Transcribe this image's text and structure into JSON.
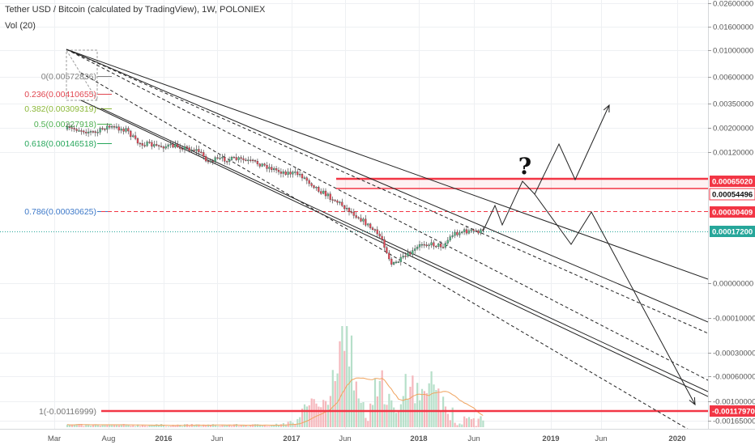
{
  "header": {
    "title": "Tether USD / Bitcoin (calculated by TradingView), 1W, POLONIEX",
    "indicator": "Vol (20)"
  },
  "colors": {
    "background": "#ffffff",
    "grid": "#eef0f3",
    "candle_up": "#53b987",
    "candle_down": "#eb4d5c",
    "volume_up": "#b6dfc9",
    "volume_down": "#f5b7bc",
    "volume_ma": "#f0a35e",
    "trendline": "#222222",
    "level_red": "#f23645",
    "current_price": "#26a69a",
    "fib_0": "#808080",
    "fib_0236": "#e0454f",
    "fib_0382": "#8cb839",
    "fib_05": "#4caf50",
    "fib_0618": "#26a65b",
    "fib_0786": "#3c78c8",
    "fib_1": "#757575"
  },
  "price_axis": {
    "ticks": [
      "0.02600000",
      "0.01600000",
      "0.01000000",
      "0.00600000",
      "0.00350000",
      "0.00200000",
      "0.00120000",
      "0.00000000",
      "-0.00010000",
      "-0.00030000",
      "-0.00060000",
      "-0.00100000",
      "-0.00165000"
    ]
  },
  "price_labels": [
    {
      "text": "0.00065020",
      "style": "red"
    },
    {
      "text": "0.00054496",
      "style": "outline"
    },
    {
      "text": "0.00030409",
      "style": "red"
    },
    {
      "text": "0.00017200",
      "style": "green"
    },
    {
      "text": "-0.00117970",
      "style": "red"
    }
  ],
  "time_axis": {
    "ticks": [
      {
        "label": "Mar",
        "bold": false
      },
      {
        "label": "Aug",
        "bold": false
      },
      {
        "label": "2016",
        "bold": true
      },
      {
        "label": "Jun",
        "bold": false
      },
      {
        "label": "2017",
        "bold": true
      },
      {
        "label": "Jun",
        "bold": false
      },
      {
        "label": "2018",
        "bold": true
      },
      {
        "label": "Jun",
        "bold": false
      },
      {
        "label": "2019",
        "bold": true
      },
      {
        "label": "Jun",
        "bold": false
      },
      {
        "label": "2020",
        "bold": true
      }
    ]
  },
  "fib_levels": [
    {
      "ratio": "0",
      "value": "0.00572836",
      "label": "0(0.00572836)",
      "color_key": "fib_0"
    },
    {
      "ratio": "0.236",
      "value": "0.00410655",
      "label": "0.236(0.00410655)",
      "color_key": "fib_0236"
    },
    {
      "ratio": "0.382",
      "value": "0.00309319",
      "label": "0.382(0.00309319)",
      "color_key": "fib_0382"
    },
    {
      "ratio": "0.5",
      "value": "0.00227918",
      "label": "0.5(0.00227918)",
      "color_key": "fib_05"
    },
    {
      "ratio": "0.618",
      "value": "0.00146518",
      "label": "0.618(0.00146518)",
      "color_key": "fib_0618"
    },
    {
      "ratio": "0.786",
      "value": "0.00030625",
      "label": "0.786(0.00030625)",
      "color_key": "fib_0786"
    },
    {
      "ratio": "1",
      "value": "-0.00116999",
      "label": "1(-0.00116999)",
      "color_key": "fib_1"
    }
  ],
  "annotation": {
    "text": "?"
  },
  "chart_data": {
    "type": "candlestick",
    "symbol": "Tether USD / Bitcoin",
    "interval": "1W",
    "exchange": "POLONIEX",
    "price_scale": "log",
    "x_range": [
      "2015-03",
      "2020-03"
    ],
    "price_path": [
      {
        "date": "2015-03",
        "close": 0.004
      },
      {
        "date": "2015-05",
        "close": 0.0041
      },
      {
        "date": "2015-07",
        "close": 0.0036
      },
      {
        "date": "2015-08",
        "close": 0.0044
      },
      {
        "date": "2015-10",
        "close": 0.004
      },
      {
        "date": "2015-11",
        "close": 0.0027
      },
      {
        "date": "2016-01",
        "close": 0.0024
      },
      {
        "date": "2016-03",
        "close": 0.0024
      },
      {
        "date": "2016-05",
        "close": 0.0021
      },
      {
        "date": "2016-06",
        "close": 0.0015
      },
      {
        "date": "2016-07",
        "close": 0.0016
      },
      {
        "date": "2016-09",
        "close": 0.0016
      },
      {
        "date": "2016-11",
        "close": 0.0014
      },
      {
        "date": "2017-01",
        "close": 0.0011
      },
      {
        "date": "2017-03",
        "close": 0.001
      },
      {
        "date": "2017-05",
        "close": 0.0006
      },
      {
        "date": "2017-07",
        "close": 0.0004
      },
      {
        "date": "2017-09",
        "close": 0.00025
      },
      {
        "date": "2017-11",
        "close": 0.00014
      },
      {
        "date": "2017-12",
        "close": 6e-05
      },
      {
        "date": "2018-02",
        "close": 9e-05
      },
      {
        "date": "2018-03",
        "close": 0.00012
      },
      {
        "date": "2018-05",
        "close": 0.00011
      },
      {
        "date": "2018-06",
        "close": 0.00016
      },
      {
        "date": "2018-07",
        "close": 0.000172
      }
    ],
    "horizontal_levels": [
      0.0006502,
      0.00054496,
      0.00030409,
      0.000172,
      -0.0011797
    ],
    "current_price": 0.000172,
    "volume_indicator": "Vol (20)"
  }
}
